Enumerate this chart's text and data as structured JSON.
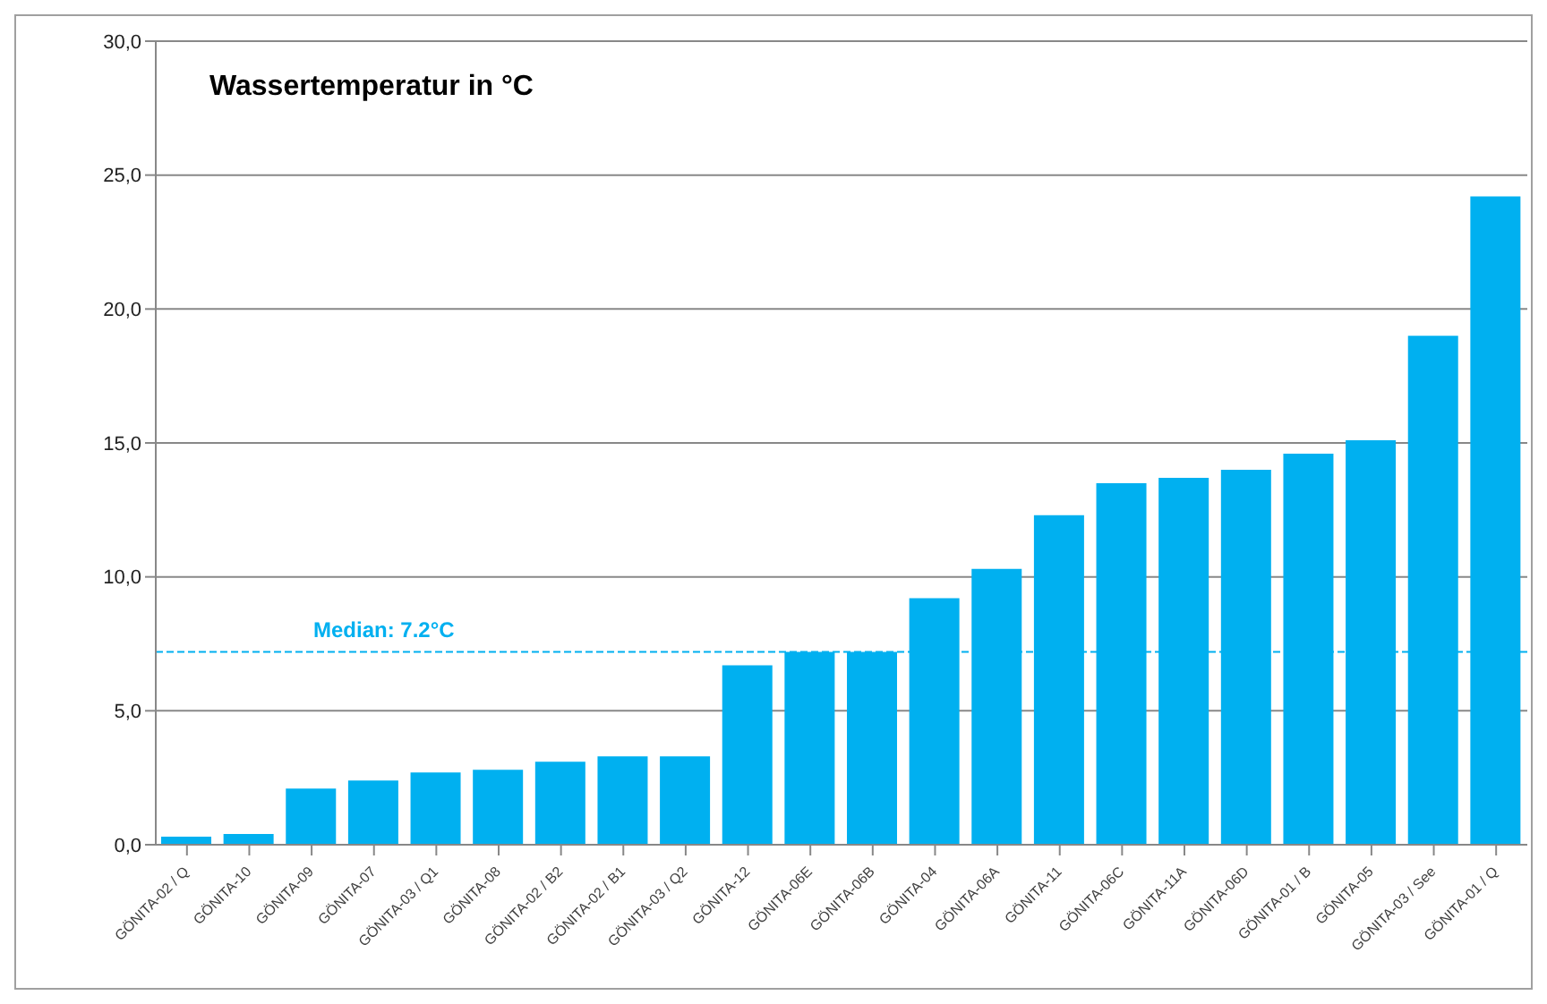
{
  "chart_data": {
    "type": "bar",
    "title": "Wassertemperatur in °C",
    "categories": [
      "GÖNITA-02 / Q",
      "GÖNITA-10",
      "GÖNITA-09",
      "GÖNITA-07",
      "GÖNITA-03 / Q1",
      "GÖNITA-08",
      "GÖNITA-02 / B2",
      "GÖNITA-02 / B1",
      "GÖNITA-03 / Q2",
      "GÖNITA-12",
      "GÖNITA-06E",
      "GÖNITA-06B",
      "GÖNITA-04",
      "GÖNITA-06A",
      "GÖNITA-11",
      "GÖNITA-06C",
      "GÖNITA-11A",
      "GÖNITA-06D",
      "GÖNITA-01 / B",
      "GÖNITA-05",
      "GÖNITA-03 / See",
      "GÖNITA-01 / Q"
    ],
    "values": [
      0.3,
      0.4,
      2.1,
      2.4,
      2.7,
      2.8,
      3.1,
      3.3,
      3.3,
      6.7,
      7.2,
      7.2,
      9.2,
      10.3,
      12.3,
      13.5,
      13.7,
      14.0,
      14.6,
      15.1,
      19.0,
      24.2
    ],
    "color": "#00b0f0",
    "ylim": [
      0,
      30
    ],
    "yticks": [
      {
        "value": 0,
        "label": "0,0"
      },
      {
        "value": 5,
        "label": "5,0"
      },
      {
        "value": 10,
        "label": "10,0"
      },
      {
        "value": 15,
        "label": "15,0"
      },
      {
        "value": 20,
        "label": "20,0"
      },
      {
        "value": 25,
        "label": "25,0"
      },
      {
        "value": 30,
        "label": "30,0"
      }
    ],
    "grid": "y",
    "ref_lines": [
      {
        "axis": "y",
        "value": 7.2,
        "label": "Median: 7.2°C",
        "color": "#00b0f0",
        "line_style": "dashed"
      }
    ]
  }
}
